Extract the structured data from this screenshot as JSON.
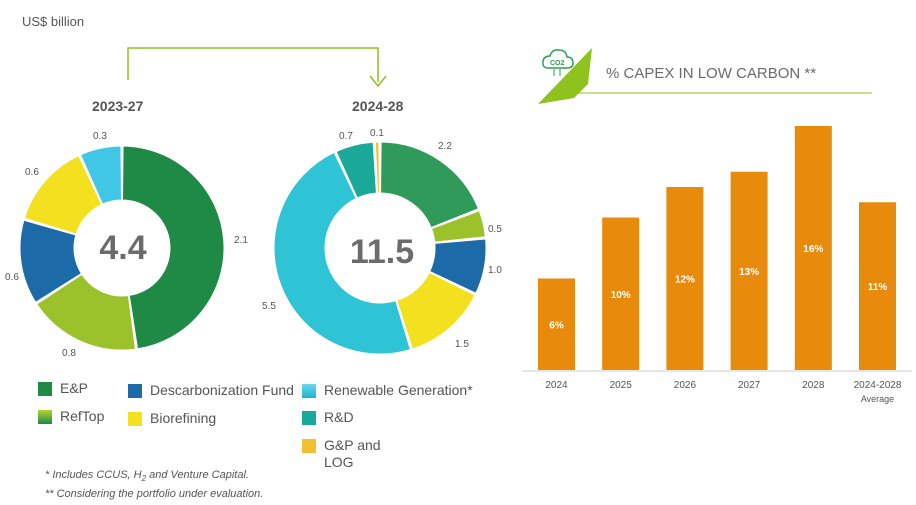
{
  "unit_label": "US$ billion",
  "donut_left": {
    "period": "2023-27",
    "total": "4.4",
    "slices": [
      {
        "name": "E&P",
        "value": 2.1,
        "label": "2.1",
        "color": "#1e8a45"
      },
      {
        "name": "RefTop",
        "value": 0.8,
        "label": "0.8",
        "color": "#9cc22b"
      },
      {
        "name": "Descarbonization Fund",
        "value": 0.6,
        "label": "0.6",
        "color": "#1d6aa8"
      },
      {
        "name": "Biorefining",
        "value": 0.6,
        "label": "0.6",
        "color": "#f3e01f"
      },
      {
        "name": "Renewable Generation*",
        "value": 0.3,
        "label": "0.3",
        "color": "#41c7e6"
      }
    ]
  },
  "donut_right": {
    "period": "2024-28",
    "total": "11.5",
    "slices": [
      {
        "name": "E&P",
        "value": 2.2,
        "label": "2.2",
        "color": "#2f9a5a"
      },
      {
        "name": "RefTop",
        "value": 0.5,
        "label": "0.5",
        "color": "#9cc22b"
      },
      {
        "name": "Descarbonization Fund",
        "value": 1.0,
        "label": "1.0",
        "color": "#1d6aa8"
      },
      {
        "name": "Biorefining",
        "value": 1.5,
        "label": "1.5",
        "color": "#f3e01f"
      },
      {
        "name": "Renewable Generation*",
        "value": 5.5,
        "label": "5.5",
        "color": "#2ec4d6"
      },
      {
        "name": "R&D",
        "value": 0.7,
        "label": "0.7",
        "color": "#1aa89a"
      },
      {
        "name": "G&P and LOG",
        "value": 0.1,
        "label": "0.1",
        "color": "#f2c032"
      }
    ]
  },
  "legend": [
    {
      "label": "E&P",
      "color": "#1e8a45"
    },
    {
      "label": "RefTop",
      "color": "#8fbc2b"
    },
    {
      "label": "Descarbonization Fund",
      "color": "#1d6aa8"
    },
    {
      "label": "Biorefining",
      "color": "#f3e01f"
    },
    {
      "label": "Renewable Generation*",
      "color": "#41c7e6"
    },
    {
      "label": "R&D",
      "color": "#1aa89a"
    },
    {
      "label": "G&P and LOG",
      "color": "#f2c032"
    }
  ],
  "footnotes": {
    "note1_pre": "* Includes CCUS, H",
    "note1_sub": "2",
    "note1_post": " and Venture Capital.",
    "note2": "** Considering the portfolio under evaluation."
  },
  "icon_text": "CO2",
  "chart_data": {
    "type": "bar",
    "title": "% CAPEX IN LOW CARBON **",
    "categories": [
      "2024",
      "2025",
      "2026",
      "2027",
      "2028",
      "2024-2028"
    ],
    "category_sublabels": [
      "",
      "",
      "",
      "",
      "",
      "Average"
    ],
    "values": [
      6,
      10,
      12,
      13,
      16,
      11
    ],
    "value_labels": [
      "6%",
      "10%",
      "12%",
      "13%",
      "16%",
      "11%"
    ],
    "xlabel": "",
    "ylabel": "",
    "ylim": [
      0,
      16
    ],
    "bar_color": "#e88a0c",
    "label_color": "#ffffff"
  },
  "colors": {
    "accent_green": "#8dc21f",
    "text_gray": "#555555"
  }
}
